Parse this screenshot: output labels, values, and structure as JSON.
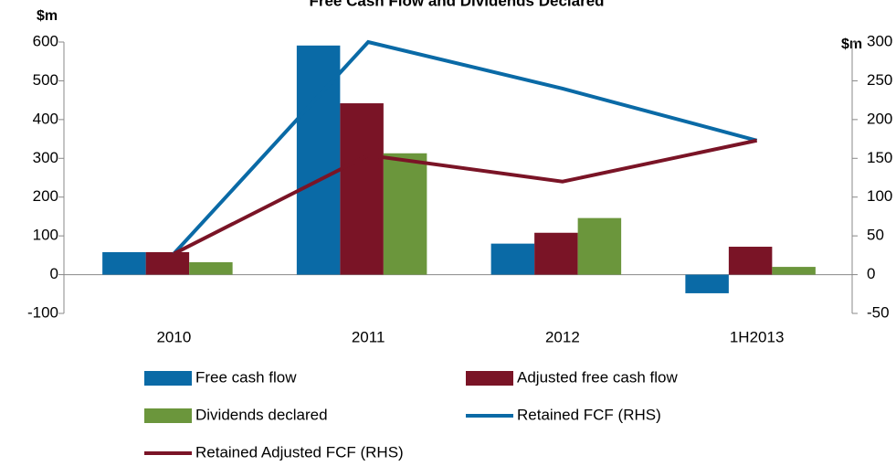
{
  "chart_data": {
    "type": "bar",
    "title": "Free Cash Flow and Dividends Declared",
    "y_label": "$m",
    "y2_label": "$m",
    "categories": [
      "2010",
      "2011",
      "2012",
      "1H2013"
    ],
    "series": [
      {
        "name": "Free cash flow",
        "type": "bar",
        "color": "#0a6aa6",
        "values": [
          58,
          591,
          80,
          -48
        ]
      },
      {
        "name": "Adjusted free cash flow",
        "type": "bar",
        "color": "#7a1426",
        "values": [
          58,
          442,
          108,
          72
        ]
      },
      {
        "name": "Dividends declared",
        "type": "bar",
        "color": "#6b963c",
        "values": [
          32,
          313,
          146,
          20
        ]
      },
      {
        "name": "Retained FCF (RHS)",
        "type": "line",
        "axis": "y2",
        "color": "#0a6aa6",
        "values": [
          27,
          300,
          240,
          173
        ]
      },
      {
        "name": "Retained Adjusted FCF (RHS)",
        "type": "line",
        "axis": "y2",
        "color": "#7a1426",
        "values": [
          27,
          154,
          120,
          173
        ]
      }
    ],
    "ylim": [
      -100,
      600
    ],
    "yticks": [
      -100,
      0,
      100,
      200,
      300,
      400,
      500,
      600
    ],
    "y2lim": [
      -50,
      300
    ],
    "y2ticks": [
      -50,
      0,
      50,
      100,
      150,
      200,
      250,
      300
    ],
    "grid": false
  }
}
